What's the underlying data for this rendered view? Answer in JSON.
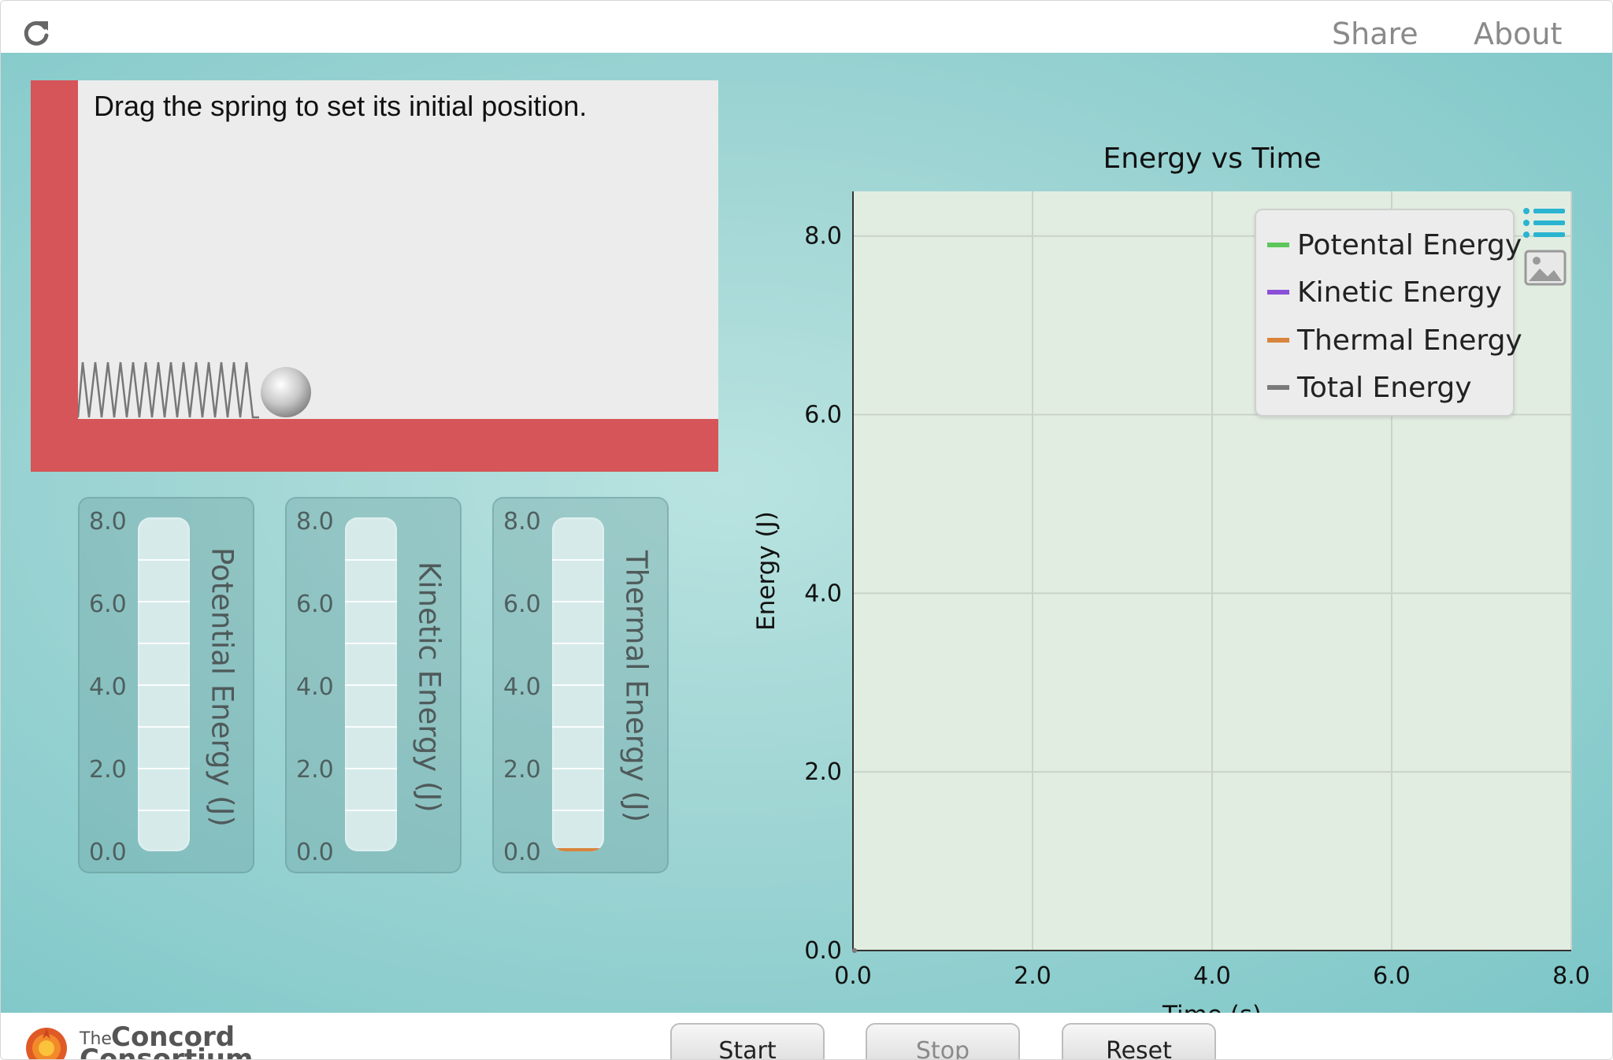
{
  "header": {
    "share_label": "Share",
    "about_label": "About",
    "reload_icon": "reload-icon"
  },
  "scene": {
    "instruction": "Drag the spring to set its initial position.",
    "wall_color": "#d55558"
  },
  "bar_graphs": [
    {
      "label": "Potential Energy (J)",
      "value": 0.0,
      "color": "#5cc65a"
    },
    {
      "label": "Kinetic Energy (J)",
      "value": 0.0,
      "color": "#8a4fd8"
    },
    {
      "label": "Thermal Energy (J)",
      "value": 0.0,
      "color": "#d8843c"
    }
  ],
  "bar_ticks": [
    "8.0",
    "6.0",
    "4.0",
    "2.0",
    "0.0"
  ],
  "legend": {
    "items": [
      {
        "label": "Potental Energy",
        "color": "#5cc65a"
      },
      {
        "label": "Kinetic Energy",
        "color": "#8a4fd8"
      },
      {
        "label": "Thermal Energy",
        "color": "#d8843c"
      },
      {
        "label": "Total Energy",
        "color": "#7a7a7a"
      }
    ],
    "list_icon": "list-icon",
    "image_icon": "image-export-icon"
  },
  "chart_data": {
    "type": "line",
    "title": "Energy vs Time",
    "xlabel": "Time (s)",
    "ylabel": "Energy (J)",
    "xlim": [
      0,
      8
    ],
    "ylim": [
      0,
      8.5
    ],
    "x_ticks": [
      "0.0",
      "2.0",
      "4.0",
      "6.0",
      "8.0"
    ],
    "y_ticks": [
      "0.0",
      "2.0",
      "4.0",
      "6.0",
      "8.0"
    ],
    "grid": true,
    "legend_position": "top-right",
    "series": [
      {
        "name": "Potental Energy",
        "x": [
          0.0
        ],
        "y": [
          0.0
        ]
      },
      {
        "name": "Kinetic Energy",
        "x": [
          0.0
        ],
        "y": [
          0.0
        ]
      },
      {
        "name": "Thermal Energy",
        "x": [
          0.0
        ],
        "y": [
          0.0
        ]
      },
      {
        "name": "Total Energy",
        "x": [
          0.0
        ],
        "y": [
          0.0
        ]
      }
    ]
  },
  "controls": {
    "start_label": "Start",
    "stop_label": "Stop",
    "reset_label": "Reset"
  },
  "footer": {
    "logo_the": "The",
    "logo_line1": "Concord",
    "logo_line2": "Consortium"
  }
}
